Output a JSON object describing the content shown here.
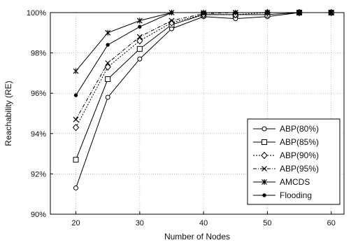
{
  "chart_data": {
    "type": "line",
    "title": "",
    "xlabel": "Number of Nodes",
    "ylabel": "Reachability (RE)",
    "x": [
      20,
      25,
      30,
      35,
      40,
      45,
      50,
      55,
      60
    ],
    "xlim": [
      16,
      62
    ],
    "ylim": [
      90,
      100
    ],
    "xticks": [
      20,
      30,
      40,
      50,
      60
    ],
    "yticks": [
      90,
      92,
      94,
      96,
      98,
      100
    ],
    "ytick_labels": [
      "90%",
      "92%",
      "94%",
      "96%",
      "98%",
      "100%"
    ],
    "grid": true,
    "legend_position": "bottom-right",
    "series": [
      {
        "name": "ABP(80%)",
        "marker": "circle-small",
        "dash": "solid",
        "values": [
          91.3,
          95.8,
          97.7,
          99.2,
          99.8,
          99.7,
          99.8,
          100,
          100
        ]
      },
      {
        "name": "ABP(85%)",
        "marker": "square",
        "dash": "solid",
        "values": [
          92.7,
          96.7,
          98.2,
          99.4,
          99.9,
          99.9,
          99.9,
          100,
          100
        ]
      },
      {
        "name": "ABP(90%)",
        "marker": "diamond",
        "dash": "dotted",
        "values": [
          94.3,
          97.3,
          98.6,
          99.5,
          99.9,
          99.9,
          100,
          100,
          100
        ]
      },
      {
        "name": "ABP(95%)",
        "marker": "x",
        "dash": "dashdot",
        "values": [
          94.7,
          97.5,
          98.8,
          99.6,
          99.95,
          100,
          100,
          100,
          100
        ]
      },
      {
        "name": "AMCDS",
        "marker": "star",
        "dash": "solid",
        "values": [
          97.1,
          99.0,
          99.6,
          100,
          100,
          100,
          100,
          100,
          100
        ]
      },
      {
        "name": "Flooding",
        "marker": "dot",
        "dash": "solid",
        "values": [
          95.9,
          98.4,
          99.3,
          100,
          100,
          100,
          100,
          100,
          100
        ]
      }
    ]
  }
}
